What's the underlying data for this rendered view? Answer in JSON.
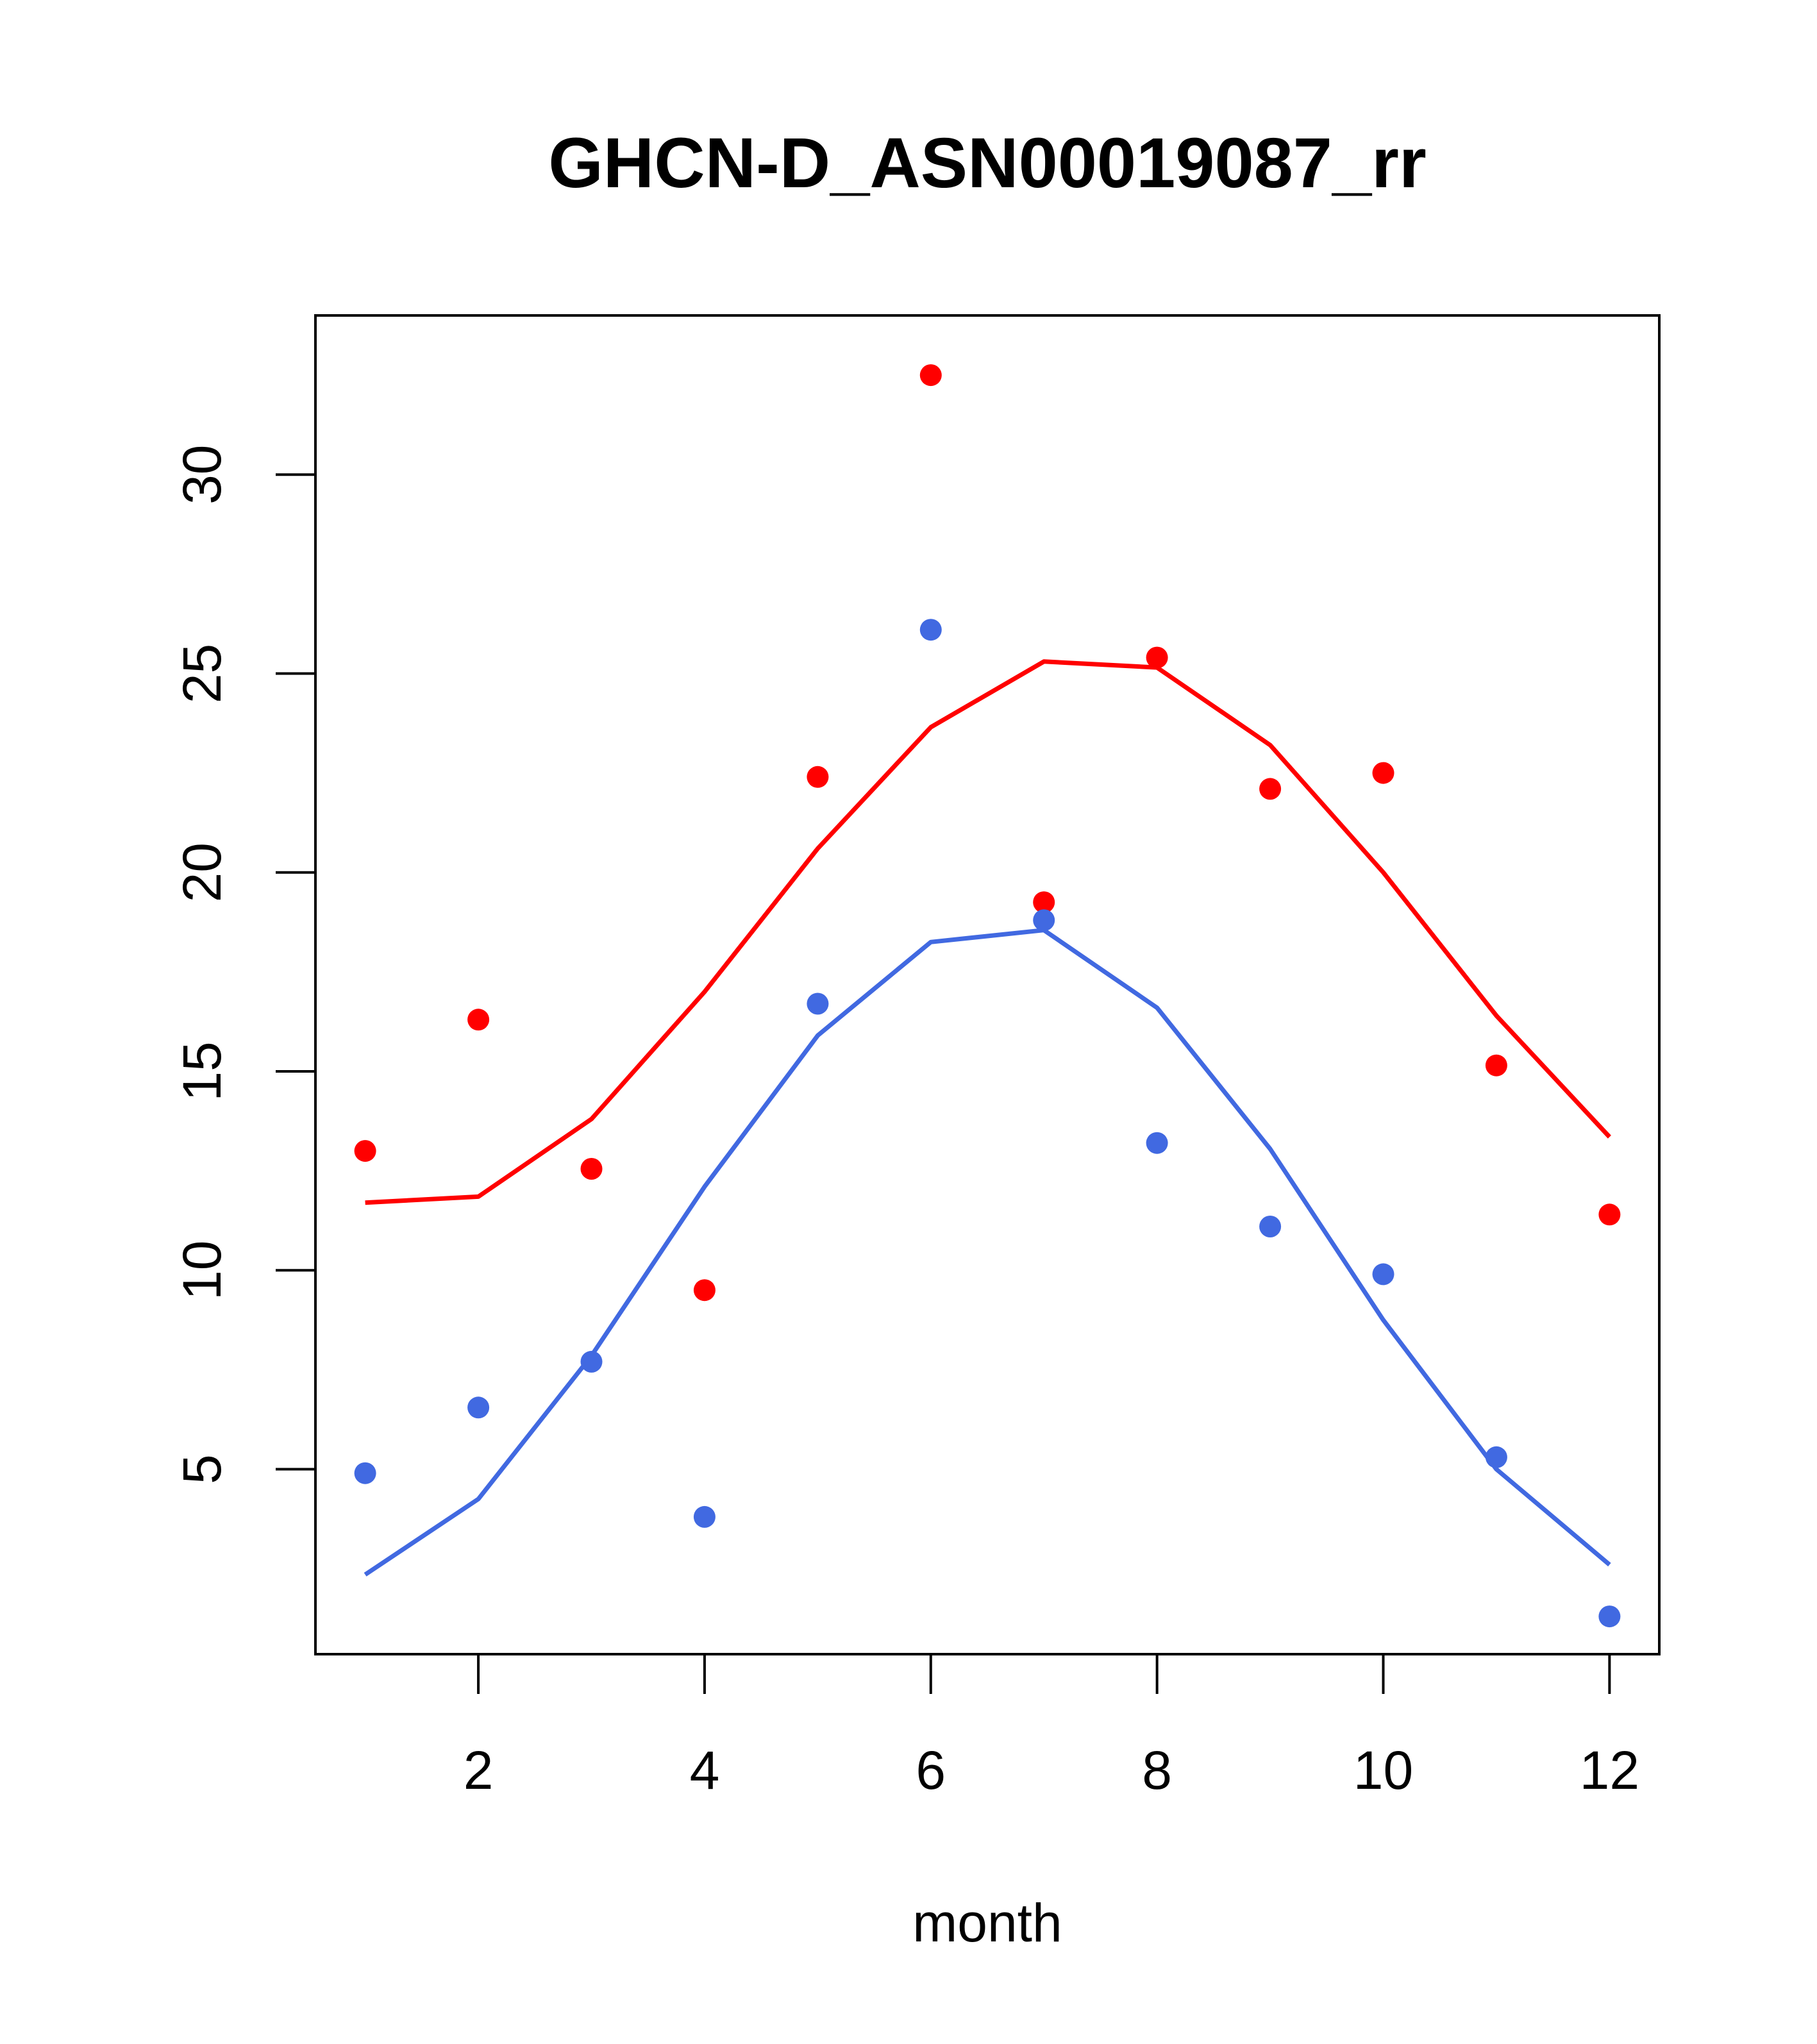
{
  "chart_data": {
    "type": "line",
    "title": "GHCN-D_ASN00019087_rr",
    "xlabel": "month",
    "ylabel": "",
    "xlim": [
      0.56,
      12.44
    ],
    "ylim": [
      0.35,
      34.0
    ],
    "xticks": [
      2,
      4,
      6,
      8,
      10,
      12
    ],
    "yticks": [
      5,
      10,
      15,
      20,
      25,
      30
    ],
    "grid": false,
    "legend": "none",
    "series": [
      {
        "color": "#ff0000",
        "style": "line",
        "x": [
          1,
          2,
          3,
          4,
          5,
          6,
          7,
          8,
          9,
          10,
          11,
          12
        ],
        "y": [
          11.7,
          11.85,
          13.8,
          17.0,
          20.6,
          23.65,
          25.3,
          25.15,
          23.2,
          20.0,
          16.4,
          13.35
        ]
      },
      {
        "color": "#ff0000",
        "style": "points",
        "x": [
          1,
          2,
          3,
          4,
          5,
          6,
          7,
          8,
          9,
          10,
          11,
          12
        ],
        "y": [
          13.0,
          16.3,
          12.55,
          9.5,
          22.4,
          32.5,
          19.25,
          25.4,
          22.1,
          22.5,
          15.15,
          11.4
        ]
      },
      {
        "color": "#4169e1",
        "style": "line",
        "x": [
          1,
          2,
          3,
          4,
          5,
          6,
          7,
          8,
          9,
          10,
          11,
          12
        ],
        "y": [
          2.35,
          4.25,
          7.85,
          12.1,
          15.9,
          18.25,
          18.55,
          16.6,
          13.05,
          8.75,
          5.0,
          2.6
        ]
      },
      {
        "color": "#4169e1",
        "style": "points",
        "x": [
          1,
          2,
          3,
          4,
          5,
          6,
          7,
          8,
          9,
          10,
          11,
          12
        ],
        "y": [
          4.9,
          6.55,
          7.7,
          3.8,
          16.7,
          26.1,
          18.8,
          13.2,
          11.1,
          9.9,
          5.3,
          1.3
        ]
      }
    ]
  }
}
